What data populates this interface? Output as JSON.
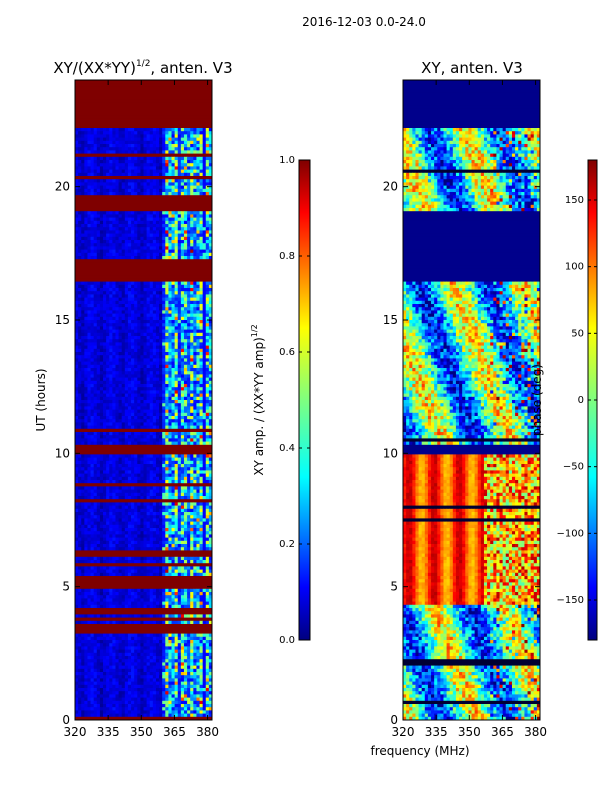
{
  "figure": {
    "suptitle": "2016-12-03 0.0-24.0",
    "xlabel_shared": "frequency (MHz)"
  },
  "chart_data": [
    {
      "type": "heatmap",
      "title_main": "XY/(XX*YY)",
      "title_exp": "1/2",
      "title_tail": ", anten. V3",
      "ylabel": "UT (hours)",
      "x_ticks": [
        320,
        335,
        350,
        365,
        380
      ],
      "y_ticks": [
        0,
        5,
        10,
        15,
        20
      ],
      "xlim": [
        320,
        382
      ],
      "ylim": [
        0,
        24
      ],
      "colormap": "jet",
      "flagged_rows_hours": [
        [
          22.2,
          24.0
        ],
        [
          19.1,
          19.7
        ],
        [
          16.4,
          17.3
        ],
        [
          10.0,
          10.35
        ],
        [
          3.3,
          3.6
        ],
        [
          4.0,
          4.25
        ],
        [
          5.1,
          5.35
        ]
      ],
      "bright_band_mhz": [
        360,
        382
      ],
      "colorbar": {
        "label_main": "XY amp. / (XX*YY amp)",
        "label_exp": "1/2",
        "ticks": [
          0.0,
          0.2,
          0.4,
          0.6,
          0.8,
          1.0
        ],
        "tick_labels": [
          "0.0",
          "0.2",
          "0.4",
          "0.6",
          "0.8",
          "1.0"
        ],
        "range": [
          0.0,
          1.0
        ]
      }
    },
    {
      "type": "heatmap",
      "title": "XY, anten. V3",
      "x_ticks": [
        320,
        335,
        350,
        365,
        380
      ],
      "y_ticks": [
        0,
        5,
        10,
        15,
        20
      ],
      "xlim": [
        320,
        382
      ],
      "ylim": [
        0,
        24
      ],
      "colormap": "jet",
      "flagged_rows_hours": [
        [
          22.2,
          24.0
        ],
        [
          17.3,
          19.1
        ],
        [
          16.4,
          17.3
        ],
        [
          10.0,
          10.35
        ]
      ],
      "colorbar": {
        "label": "phase (deg)",
        "ticks": [
          -150,
          -100,
          -50,
          0,
          50,
          100,
          150
        ],
        "tick_labels": [
          "−150",
          "−100",
          "−50",
          "0",
          "50",
          "100",
          "150"
        ],
        "range": [
          -180,
          180
        ]
      }
    }
  ]
}
